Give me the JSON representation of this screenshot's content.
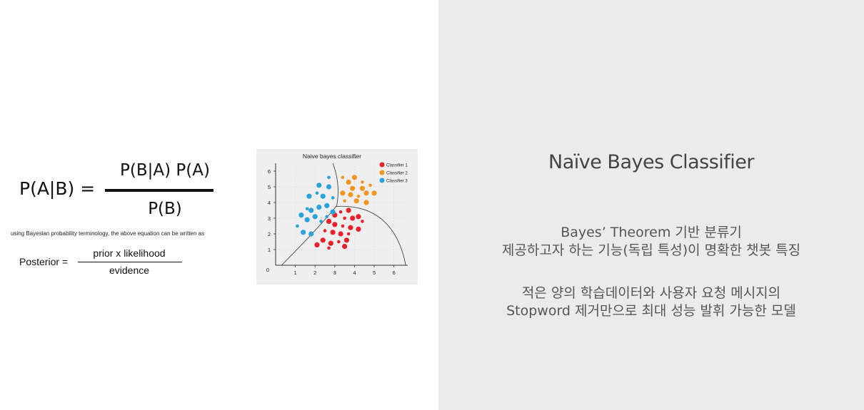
{
  "formula": {
    "lhs": "P(A|B) =",
    "numerator": "P(B|A) P(A)",
    "denominator": "P(B)"
  },
  "note": "using Bayesian probability terminology, the above equation can be written as",
  "posterior_formula": {
    "lhs": "Posterior =",
    "numerator": "prior x likelihood",
    "denominator": "evidence"
  },
  "chart_data": {
    "type": "scatter",
    "title": "Naive bayes classifier",
    "xlabel": "",
    "ylabel": "",
    "xlim": [
      0,
      6.7
    ],
    "ylim": [
      0,
      6.5
    ],
    "x_ticks": [
      "1",
      "2",
      "3",
      "4",
      "5",
      "6"
    ],
    "y_ticks": [
      "1",
      "2",
      "3",
      "4",
      "5",
      "6"
    ],
    "origin_label": "0",
    "legend_position": "top-right",
    "grid": true,
    "series": [
      {
        "name": "Classifier 1",
        "color": "#e8212b",
        "points": [
          [
            3.3,
            3.4
          ],
          [
            3.7,
            3.5
          ],
          [
            3.0,
            3.2
          ],
          [
            3.5,
            3.0
          ],
          [
            3.9,
            3.0
          ],
          [
            4.2,
            3.1
          ],
          [
            4.4,
            2.8
          ],
          [
            2.7,
            2.8
          ],
          [
            3.0,
            2.6
          ],
          [
            3.4,
            2.5
          ],
          [
            3.8,
            2.4
          ],
          [
            4.2,
            2.3
          ],
          [
            2.5,
            2.2
          ],
          [
            2.9,
            2.1
          ],
          [
            3.3,
            2.0
          ],
          [
            3.7,
            2.0
          ],
          [
            2.4,
            1.6
          ],
          [
            2.8,
            1.4
          ],
          [
            3.2,
            1.5
          ],
          [
            3.6,
            1.6
          ],
          [
            2.1,
            1.3
          ],
          [
            2.7,
            1.1
          ],
          [
            3.5,
            1.2
          ]
        ]
      },
      {
        "name": "Classifier 2",
        "color": "#f29623",
        "points": [
          [
            3.4,
            5.6
          ],
          [
            3.7,
            5.3
          ],
          [
            4.0,
            5.6
          ],
          [
            4.4,
            5.3
          ],
          [
            3.9,
            4.9
          ],
          [
            4.4,
            4.9
          ],
          [
            4.8,
            5.1
          ],
          [
            3.4,
            4.6
          ],
          [
            3.8,
            4.5
          ],
          [
            4.2,
            4.4
          ],
          [
            4.6,
            4.6
          ],
          [
            5.0,
            4.6
          ],
          [
            3.5,
            4.1
          ],
          [
            4.1,
            4.1
          ],
          [
            4.6,
            4.0
          ]
        ]
      },
      {
        "name": "Classifier 3",
        "color": "#2aa3dc",
        "points": [
          [
            2.7,
            5.6
          ],
          [
            2.2,
            5.1
          ],
          [
            2.7,
            5.0
          ],
          [
            2.1,
            4.6
          ],
          [
            1.7,
            4.4
          ],
          [
            2.4,
            4.4
          ],
          [
            2.9,
            4.3
          ],
          [
            2.6,
            3.8
          ],
          [
            2.2,
            3.7
          ],
          [
            1.6,
            3.6
          ],
          [
            1.3,
            3.2
          ],
          [
            2.0,
            3.1
          ],
          [
            2.6,
            3.1
          ],
          [
            2.9,
            3.4
          ],
          [
            1.6,
            2.9
          ],
          [
            1.1,
            2.5
          ],
          [
            1.4,
            2.1
          ],
          [
            1.8,
            2.0
          ],
          [
            2.3,
            2.8
          ],
          [
            1.8,
            3.5
          ]
        ]
      }
    ]
  },
  "right": {
    "title": "Naïve Bayes Classifier",
    "block1": [
      "Bayes’ Theorem 기반 분류기",
      "제공하고자 하는 기능(독립 특성)이 명확한 챗봇 특징"
    ],
    "block2": [
      "적은 양의 학습데이터와  사용자 요청 메시지의",
      "Stopword 제거만으로 최대 성능 발휘 가능한 모델"
    ]
  }
}
